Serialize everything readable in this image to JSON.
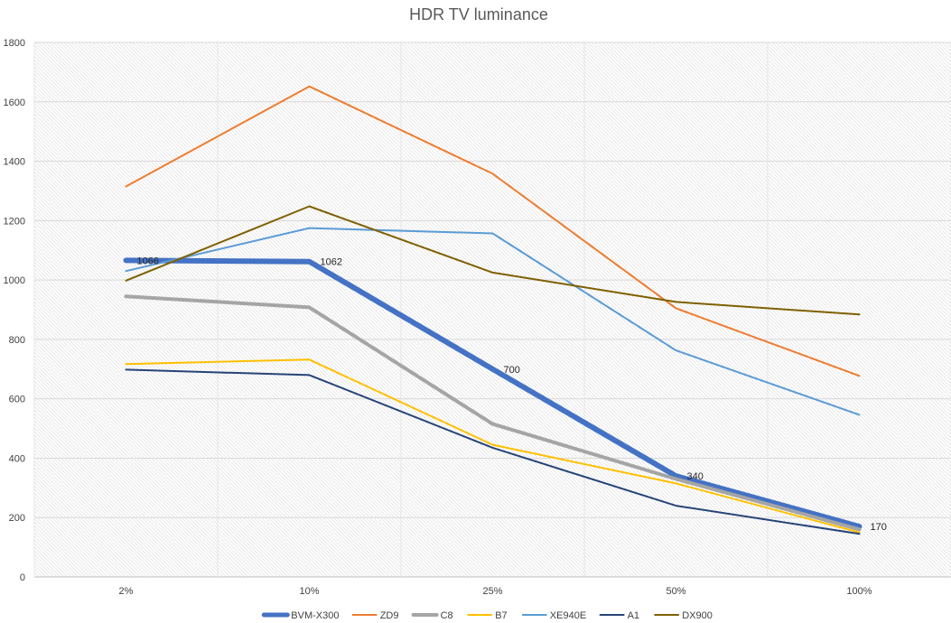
{
  "chart_data": {
    "type": "line",
    "title": "HDR TV luminance",
    "xlabel": "",
    "ylabel": "",
    "categories": [
      "2%",
      "10%",
      "25%",
      "50%",
      "100%"
    ],
    "ylim": [
      0,
      1800
    ],
    "yticks": [
      0,
      200,
      400,
      600,
      800,
      1000,
      1200,
      1400,
      1600,
      1800
    ],
    "grid": true,
    "legend": "bottom",
    "series": [
      {
        "name": "BVM-X300",
        "values": [
          1066,
          1062,
          700,
          340,
          170
        ],
        "color": "#4472C4",
        "width": 6,
        "labels": [
          "1066",
          "1062",
          "700",
          "340",
          "170"
        ]
      },
      {
        "name": "ZD9",
        "values": [
          1315,
          1652,
          1358,
          905,
          677
        ],
        "color": "#ED7D31",
        "width": 2
      },
      {
        "name": "C8",
        "values": [
          945,
          908,
          515,
          330,
          160
        ],
        "color": "#A5A5A5",
        "width": 4
      },
      {
        "name": "B7",
        "values": [
          717,
          732,
          445,
          315,
          150
        ],
        "color": "#FFC000",
        "width": 2
      },
      {
        "name": "XE940E",
        "values": [
          1030,
          1175,
          1157,
          763,
          546
        ],
        "color": "#5B9BD5",
        "width": 2
      },
      {
        "name": "A1",
        "values": [
          698,
          680,
          435,
          240,
          145
        ],
        "color": "#264478",
        "width": 2
      },
      {
        "name": "DX900",
        "values": [
          998,
          1248,
          1025,
          926,
          884
        ],
        "color": "#7F6000",
        "width": 2
      }
    ]
  }
}
